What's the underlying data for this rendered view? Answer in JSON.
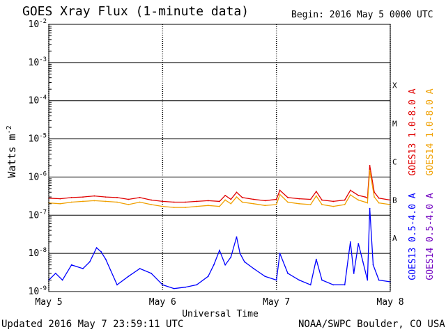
{
  "header": {
    "title": "GOES Xray Flux (1-minute data)",
    "begin": "Begin:  2016 May 5 0000 UTC"
  },
  "footer": {
    "updated": "Updated 2016 May  7 23:59:11 UTC",
    "credit": "NOAA/SWPC Boulder, CO USA"
  },
  "chart_data": {
    "type": "line",
    "title": "GOES Xray Flux (1-minute data)",
    "xlabel": "Universal Time",
    "ylabel": "Watts m",
    "ylabel_exponent": "-2",
    "y_scale": "log",
    "ylim": [
      1e-09,
      0.01
    ],
    "y_ticks": [
      {
        "base": "10",
        "exp": "-2",
        "value": 0.01
      },
      {
        "base": "10",
        "exp": "-3",
        "value": 0.001
      },
      {
        "base": "10",
        "exp": "-4",
        "value": 0.0001
      },
      {
        "base": "10",
        "exp": "-5",
        "value": 1e-05
      },
      {
        "base": "10",
        "exp": "-6",
        "value": 1e-06
      },
      {
        "base": "10",
        "exp": "-7",
        "value": 1e-07
      },
      {
        "base": "10",
        "exp": "-8",
        "value": 1e-08
      },
      {
        "base": "10",
        "exp": "-9",
        "value": 1e-09
      }
    ],
    "x_ticks": [
      {
        "label": "May 5",
        "day": 0
      },
      {
        "label": "May 6",
        "day": 1
      },
      {
        "label": "May 7",
        "day": 2
      },
      {
        "label": "May 8",
        "day": 3
      }
    ],
    "flare_classes": [
      {
        "label": "X",
        "value": 0.0001
      },
      {
        "label": "M",
        "value": 1e-05
      },
      {
        "label": "C",
        "value": 1e-06
      },
      {
        "label": "B",
        "value": 1e-07
      },
      {
        "label": "A",
        "value": 1e-08
      }
    ],
    "grid": true,
    "series": [
      {
        "name": "GOES13 1.0-8.0 A",
        "color": "#e00000",
        "points": [
          [
            0.0,
            2.8e-07
          ],
          [
            0.1,
            2.7e-07
          ],
          [
            0.2,
            2.9e-07
          ],
          [
            0.3,
            3e-07
          ],
          [
            0.4,
            3.2e-07
          ],
          [
            0.5,
            3e-07
          ],
          [
            0.6,
            2.9e-07
          ],
          [
            0.7,
            2.6e-07
          ],
          [
            0.8,
            2.9e-07
          ],
          [
            0.9,
            2.5e-07
          ],
          [
            1.0,
            2.3e-07
          ],
          [
            1.1,
            2.2e-07
          ],
          [
            1.2,
            2.2e-07
          ],
          [
            1.3,
            2.3e-07
          ],
          [
            1.4,
            2.4e-07
          ],
          [
            1.5,
            2.3e-07
          ],
          [
            1.55,
            3.3e-07
          ],
          [
            1.6,
            2.6e-07
          ],
          [
            1.65,
            4e-07
          ],
          [
            1.7,
            2.9e-07
          ],
          [
            1.8,
            2.6e-07
          ],
          [
            1.9,
            2.4e-07
          ],
          [
            2.0,
            2.6e-07
          ],
          [
            2.03,
            4.5e-07
          ],
          [
            2.1,
            2.9e-07
          ],
          [
            2.2,
            2.7e-07
          ],
          [
            2.3,
            2.6e-07
          ],
          [
            2.35,
            4.2e-07
          ],
          [
            2.4,
            2.5e-07
          ],
          [
            2.5,
            2.3e-07
          ],
          [
            2.6,
            2.5e-07
          ],
          [
            2.65,
            4.5e-07
          ],
          [
            2.72,
            3.3e-07
          ],
          [
            2.78,
            3e-07
          ],
          [
            2.8,
            2.8e-07
          ],
          [
            2.82,
            2e-06
          ],
          [
            2.86,
            4e-07
          ],
          [
            2.9,
            2.8e-07
          ],
          [
            3.0,
            2.5e-07
          ]
        ]
      },
      {
        "name": "GOES14 1.0-8.0 A",
        "color": "#f0a000",
        "points": [
          [
            0.0,
            2.1e-07
          ],
          [
            0.1,
            2e-07
          ],
          [
            0.2,
            2.2e-07
          ],
          [
            0.3,
            2.3e-07
          ],
          [
            0.4,
            2.4e-07
          ],
          [
            0.5,
            2.3e-07
          ],
          [
            0.6,
            2.2e-07
          ],
          [
            0.7,
            1.9e-07
          ],
          [
            0.8,
            2.2e-07
          ],
          [
            0.9,
            1.9e-07
          ],
          [
            1.0,
            1.7e-07
          ],
          [
            1.1,
            1.6e-07
          ],
          [
            1.2,
            1.6e-07
          ],
          [
            1.3,
            1.7e-07
          ],
          [
            1.4,
            1.8e-07
          ],
          [
            1.5,
            1.7e-07
          ],
          [
            1.55,
            2.5e-07
          ],
          [
            1.6,
            2e-07
          ],
          [
            1.65,
            3e-07
          ],
          [
            1.7,
            2.2e-07
          ],
          [
            1.8,
            2e-07
          ],
          [
            1.9,
            1.8e-07
          ],
          [
            2.0,
            1.9e-07
          ],
          [
            2.03,
            3.5e-07
          ],
          [
            2.1,
            2.2e-07
          ],
          [
            2.2,
            2e-07
          ],
          [
            2.3,
            1.9e-07
          ],
          [
            2.35,
            3.2e-07
          ],
          [
            2.4,
            1.9e-07
          ],
          [
            2.5,
            1.7e-07
          ],
          [
            2.6,
            1.9e-07
          ],
          [
            2.65,
            3.4e-07
          ],
          [
            2.72,
            2.5e-07
          ],
          [
            2.78,
            2.2e-07
          ],
          [
            2.8,
            2.1e-07
          ],
          [
            2.82,
            1.5e-06
          ],
          [
            2.86,
            3e-07
          ],
          [
            2.9,
            2.1e-07
          ],
          [
            3.0,
            1.9e-07
          ]
        ]
      },
      {
        "name": "GOES13 0.5-4.0 A",
        "color": "#0000ff",
        "points": [
          [
            0.0,
            2e-09
          ],
          [
            0.06,
            3e-09
          ],
          [
            0.12,
            2e-09
          ],
          [
            0.2,
            5e-09
          ],
          [
            0.3,
            4e-09
          ],
          [
            0.36,
            6e-09
          ],
          [
            0.42,
            1.4e-08
          ],
          [
            0.46,
            1.1e-08
          ],
          [
            0.5,
            7e-09
          ],
          [
            0.6,
            1.5e-09
          ],
          [
            0.7,
            2.5e-09
          ],
          [
            0.8,
            4e-09
          ],
          [
            0.9,
            3e-09
          ],
          [
            1.0,
            1.5e-09
          ],
          [
            1.1,
            1.2e-09
          ],
          [
            1.2,
            1.3e-09
          ],
          [
            1.3,
            1.5e-09
          ],
          [
            1.4,
            2.5e-09
          ],
          [
            1.45,
            5e-09
          ],
          [
            1.5,
            1.2e-08
          ],
          [
            1.55,
            5e-09
          ],
          [
            1.6,
            8e-09
          ],
          [
            1.65,
            2.7e-08
          ],
          [
            1.68,
            1e-08
          ],
          [
            1.72,
            6e-09
          ],
          [
            1.8,
            4e-09
          ],
          [
            1.9,
            2.5e-09
          ],
          [
            2.0,
            2e-09
          ],
          [
            2.03,
            1e-08
          ],
          [
            2.1,
            3e-09
          ],
          [
            2.2,
            2e-09
          ],
          [
            2.3,
            1.5e-09
          ],
          [
            2.35,
            7e-09
          ],
          [
            2.4,
            2e-09
          ],
          [
            2.5,
            1.5e-09
          ],
          [
            2.6,
            1.5e-09
          ],
          [
            2.65,
            2e-08
          ],
          [
            2.68,
            3e-09
          ],
          [
            2.72,
            1.8e-08
          ],
          [
            2.76,
            6e-09
          ],
          [
            2.8,
            2e-09
          ],
          [
            2.82,
            1.5e-07
          ],
          [
            2.85,
            5e-09
          ],
          [
            2.9,
            2e-09
          ],
          [
            3.0,
            1.8e-09
          ]
        ]
      },
      {
        "name": "GOES14 0.5-4.0 A",
        "color": "#7000c0",
        "points": []
      }
    ]
  }
}
